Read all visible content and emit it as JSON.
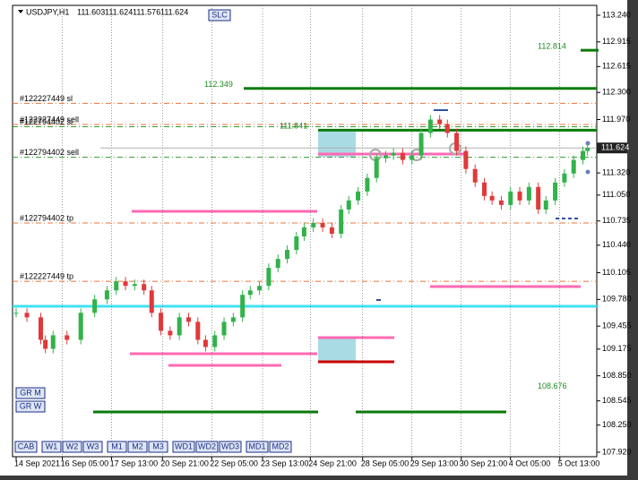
{
  "chart_data": {
    "type": "candlestick",
    "title": "USDJPY,H1",
    "ohlc": [
      111.603,
      111.624,
      111.576,
      111.624
    ],
    "up_color": "#32b24a",
    "down_color": "#e0393a",
    "grid": true,
    "xlim": [
      0,
      377
    ],
    "ylim": [
      107.865,
      113.36
    ],
    "xticks": [
      {
        "value": 0,
        "label": "14 Sep 2021"
      },
      {
        "value": 30,
        "label": "16 Sep 05:00"
      },
      {
        "value": 62,
        "label": "17 Sep 13:00"
      },
      {
        "value": 95,
        "label": "20 Sep 21:00"
      },
      {
        "value": 127,
        "label": "22 Sep 05:00"
      },
      {
        "value": 160,
        "label": "23 Sep 13:00"
      },
      {
        "value": 191,
        "label": "24 Sep 21:00"
      },
      {
        "value": 225,
        "label": "28 Sep 05:00"
      },
      {
        "value": 257,
        "label": "29 Sep 13:00"
      },
      {
        "value": 289,
        "label": "30 Sep 21:00"
      },
      {
        "value": 321,
        "label": "4 Oct 05:00"
      },
      {
        "value": 353,
        "label": "5 Oct 13:00"
      }
    ],
    "yticks": [
      {
        "value": 113.24,
        "label": "113.240"
      },
      112.915,
      112.615,
      {
        "value": 112.3,
        "label": "112.300"
      },
      {
        "value": 111.97,
        "label": "111.970"
      },
      {
        "value": 111.32,
        "label": "111.320"
      },
      {
        "value": 111.05,
        "label": "111.050"
      },
      110.735,
      {
        "value": 110.44,
        "label": "110.440"
      },
      110.105,
      {
        "value": 109.78,
        "label": "109.780"
      },
      109.455,
      109.175,
      {
        "value": 108.85,
        "label": "108.850"
      },
      108.545,
      {
        "value": 108.25,
        "label": "108.250"
      },
      {
        "value": 107.92,
        "label": "107.920"
      }
    ],
    "x": [
      0,
      7,
      16,
      19,
      24,
      33,
      42,
      51,
      59,
      65,
      71,
      77,
      83,
      88,
      94,
      100,
      106,
      112,
      118,
      123,
      129,
      135,
      141,
      147,
      152,
      158,
      164,
      170,
      176,
      182,
      187,
      193,
      199,
      205,
      211,
      216,
      222,
      228,
      234,
      240,
      245,
      251,
      257,
      263,
      269,
      275,
      280,
      286,
      292,
      298,
      304,
      309,
      315,
      321,
      327,
      333,
      339,
      344,
      350,
      356,
      362,
      368,
      371
    ],
    "values": [
      109.617,
      109.562,
      109.288,
      109.179,
      109.343,
      109.288,
      109.617,
      109.781,
      109.89,
      110.0,
      109.945,
      109.967,
      109.89,
      109.617,
      109.398,
      109.343,
      109.562,
      109.507,
      109.288,
      109.201,
      109.343,
      109.507,
      109.562,
      109.836,
      109.89,
      109.945,
      110.164,
      110.273,
      110.383,
      110.547,
      110.657,
      110.711,
      110.657,
      110.58,
      110.875,
      110.985,
      111.094,
      111.259,
      111.499,
      111.532,
      111.565,
      111.478,
      111.532,
      111.806,
      111.97,
      111.915,
      111.806,
      111.587,
      111.368,
      111.204,
      111.04,
      110.985,
      110.93,
      111.094,
      110.985,
      111.149,
      110.875,
      110.985,
      111.204,
      111.313,
      111.478,
      111.587,
      111.624
    ],
    "order_lines": [
      {
        "label": "#122227449 sl",
        "value": 112.167,
        "color": "#e8743b"
      },
      {
        "label": "#122227449 sell",
        "value": 111.91,
        "color": "#e8743b"
      },
      {
        "label": "#122794402 sl",
        "value": 111.883,
        "color": "#2e9e2e"
      },
      {
        "label": "#122794402 sell",
        "value": 111.51,
        "color": "#2e9e2e"
      },
      {
        "label": "#122794402 tp",
        "value": 110.711,
        "color": "#e8743b"
      },
      {
        "label": "#122227449 tp",
        "value": 110.0,
        "color": "#e8743b"
      }
    ],
    "price_levels": [
      112.814,
      112.349,
      111.841,
      108.676
    ]
  },
  "buttons": {
    "top": "SLC",
    "side": [
      "GR M",
      "GR W"
    ],
    "bottom": [
      "CAB",
      "W1",
      "W2",
      "W3",
      "M1",
      "M2",
      "M3",
      "WD1",
      "WD2",
      "WD3",
      "MD1",
      "MD2"
    ]
  }
}
